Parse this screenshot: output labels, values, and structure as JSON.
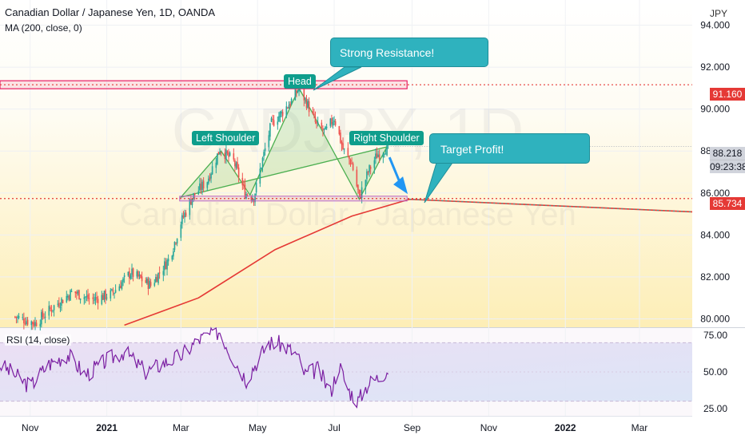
{
  "header": {
    "title": "Canadian Dollar / Japanese Yen, 1D, OANDA",
    "indicator": "MA (200, close, 0)",
    "currency": "JPY",
    "rsi_label": "RSI (14, close)"
  },
  "watermark": {
    "symbol": "CADJPY, 1D",
    "name": "Canadian Dollar / Japanese Yen"
  },
  "annotations": {
    "head": "Head",
    "left_shoulder": "Left Shoulder",
    "right_shoulder": "Right Shoulder",
    "resistance_callout": "Strong Resistance!",
    "target_callout": "Target Profit!"
  },
  "price_tags": {
    "resistance": "91.160",
    "last_price": "88.218",
    "countdown": "09:23:38",
    "neckline": "85.734"
  },
  "colors": {
    "resistance_line": "#e91e63",
    "neckline_line": "#e53935",
    "ma_line": "#e53935",
    "pattern_fill": "#4caf50",
    "callout": "#2fb2be",
    "label_bg": "#0f9e8c",
    "arrow": "#2196f3",
    "rsi_line": "#7b1fa2",
    "bull_candle": "#26a69a",
    "bear_candle": "#ef5350"
  },
  "chart_data": [
    {
      "type": "candlestick",
      "title": "Canadian Dollar / Japanese Yen, 1D, OANDA",
      "x_ticks": [
        "Nov",
        "2021",
        "Mar",
        "May",
        "Jul",
        "Sep",
        "Nov",
        "2022",
        "Mar"
      ],
      "y_ticks": [
        "80.000",
        "82.000",
        "84.000",
        "86.000",
        "88.000",
        "90.000",
        "92.000",
        "94.000"
      ],
      "ylim": [
        79.6,
        95.2
      ],
      "xlim": [
        "2020-10-08",
        "2022-04-12"
      ],
      "close_series": {
        "dates": [
          "2020-10-20",
          "2020-11-05",
          "2020-11-20",
          "2020-12-05",
          "2020-12-20",
          "2021-01-05",
          "2021-01-20",
          "2021-02-05",
          "2021-02-20",
          "2021-03-01",
          "2021-03-10",
          "2021-03-22",
          "2021-04-01",
          "2021-04-12",
          "2021-04-21",
          "2021-04-28",
          "2021-05-05",
          "2021-05-12",
          "2021-05-20",
          "2021-05-28",
          "2021-06-03",
          "2021-06-10",
          "2021-06-17",
          "2021-06-24",
          "2021-07-01",
          "2021-07-08",
          "2021-07-15",
          "2021-07-21",
          "2021-07-28",
          "2021-08-04",
          "2021-08-10",
          "2021-08-13"
        ],
        "values": [
          80.1,
          79.8,
          80.6,
          81.3,
          80.9,
          81.2,
          82.2,
          81.6,
          82.9,
          84.6,
          85.8,
          86.6,
          88.1,
          87.5,
          86.0,
          85.8,
          87.6,
          89.3,
          89.8,
          90.4,
          91.0,
          90.2,
          89.2,
          88.9,
          89.6,
          88.1,
          87.4,
          85.8,
          87.0,
          87.8,
          88.1,
          88.218
        ]
      },
      "pattern": {
        "left_shoulder": [
          "2021-04-02",
          88.0
        ],
        "head": [
          "2021-06-03",
          91.0
        ],
        "right_shoulder": [
          "2021-08-12",
          88.2
        ],
        "neckline_points": [
          [
            "2021-03-01",
            85.8
          ],
          [
            "2021-04-25",
            85.9
          ],
          [
            "2021-07-21",
            85.7
          ]
        ]
      },
      "levels": {
        "resistance": 91.16,
        "neckline": 85.734,
        "last_price": 88.218
      },
      "ma200": {
        "dates": [
          "2021-01-15",
          "2021-03-15",
          "2021-05-15",
          "2021-07-15",
          "2021-08-30",
          "2022-04-12"
        ],
        "values": [
          79.7,
          81.0,
          83.3,
          84.9,
          85.7,
          85.1
        ]
      },
      "target": {
        "from": [
          "2021-08-14",
          87.7
        ],
        "to": [
          "2021-08-26",
          85.95
        ]
      }
    },
    {
      "type": "line",
      "title": "RSI (14, close)",
      "y_ticks": [
        "25.00",
        "50.00",
        "75.00"
      ],
      "ylim": [
        20,
        80
      ],
      "band": [
        30,
        70
      ],
      "series": [
        {
          "name": "RSI",
          "dates": [
            "2020-10-08",
            "2020-10-20",
            "2020-11-01",
            "2020-11-15",
            "2020-12-01",
            "2020-12-15",
            "2021-01-01",
            "2021-01-15",
            "2021-02-01",
            "2021-02-15",
            "2021-03-01",
            "2021-03-15",
            "2021-04-01",
            "2021-04-10",
            "2021-04-22",
            "2021-05-01",
            "2021-05-10",
            "2021-05-20",
            "2021-06-01",
            "2021-06-08",
            "2021-06-18",
            "2021-06-28",
            "2021-07-05",
            "2021-07-12",
            "2021-07-20",
            "2021-07-28",
            "2021-08-05",
            "2021-08-13"
          ],
          "values": [
            55,
            48,
            40,
            55,
            62,
            48,
            58,
            64,
            50,
            56,
            61,
            72,
            78,
            62,
            45,
            58,
            70,
            69,
            62,
            48,
            52,
            36,
            55,
            38,
            30,
            42,
            46,
            52
          ]
        }
      ]
    }
  ]
}
